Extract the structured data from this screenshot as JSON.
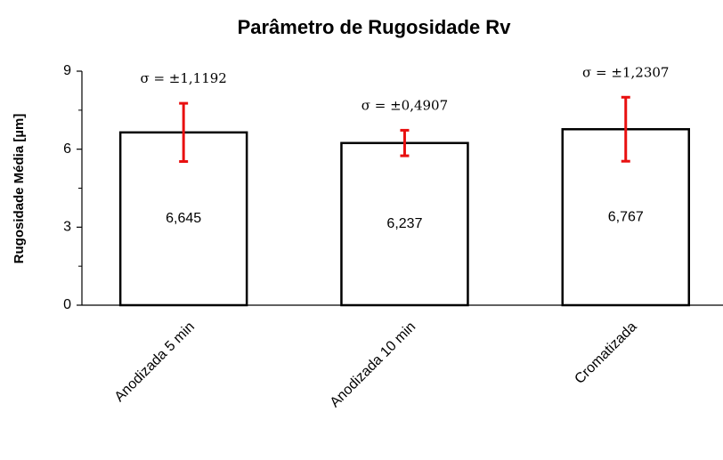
{
  "chart_data": {
    "type": "bar",
    "title": "Parâmetro de Rugosidade Rv",
    "ylabel": "Rugosidade Média [µm]",
    "categories": [
      "Anodizada 5 min",
      "Anodizada 10 min",
      "Cromatizada"
    ],
    "values": [
      6.645,
      6.237,
      6.767
    ],
    "value_labels": [
      "6,645",
      "6,237",
      "6,767"
    ],
    "errors": [
      1.1192,
      0.4907,
      1.2307
    ],
    "error_labels": [
      "σ = ±1,1192",
      "σ = ±0,4907",
      "σ = ±1,2307"
    ],
    "color": "#ffffff",
    "edgecolor": "#000000",
    "error_color": "#e81010",
    "ylim": [
      0,
      9
    ],
    "yticks": [
      0,
      3,
      6,
      9
    ],
    "minor_yticks": [
      1.5,
      4.5,
      7.5
    ],
    "grid": false
  }
}
